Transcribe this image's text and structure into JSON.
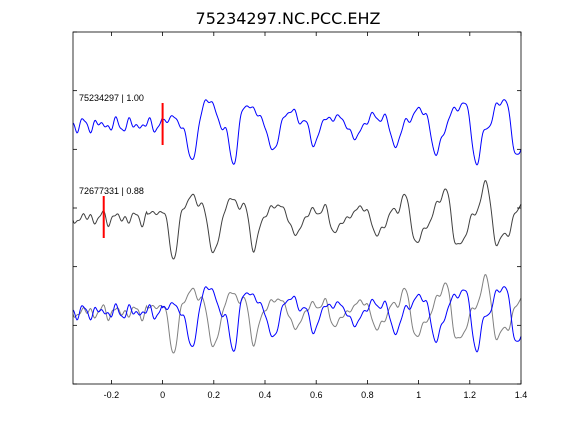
{
  "chart_data": {
    "type": "line",
    "title": "75234297.NC.PCC.EHZ",
    "xlim": [
      -0.35,
      1.4
    ],
    "x_ticks": [
      -0.2,
      0,
      0.2,
      0.4,
      0.6,
      0.8,
      1,
      1.2,
      1.4
    ],
    "x_tick_labels": [
      "-0.2",
      "0",
      "0.2",
      "0.4",
      "0.6",
      "0.8",
      "1",
      "1.2",
      "1.4"
    ],
    "y_tick_count": 7,
    "grid": false,
    "panels": [
      {
        "label": "75234297 | 1.00",
        "pick_time": 0.0,
        "series": [
          {
            "color": "#0000ff",
            "trace": "main"
          }
        ]
      },
      {
        "label": "72677331 | 0.88",
        "pick_time": -0.23,
        "series": [
          {
            "color": "#404040",
            "trace": "similar"
          }
        ]
      },
      {
        "label": "",
        "pick_time": null,
        "series": [
          {
            "color": "#808080",
            "trace": "similar"
          },
          {
            "color": "#0000ff",
            "trace": "main"
          }
        ]
      }
    ],
    "pick_color": "#ff0000"
  }
}
